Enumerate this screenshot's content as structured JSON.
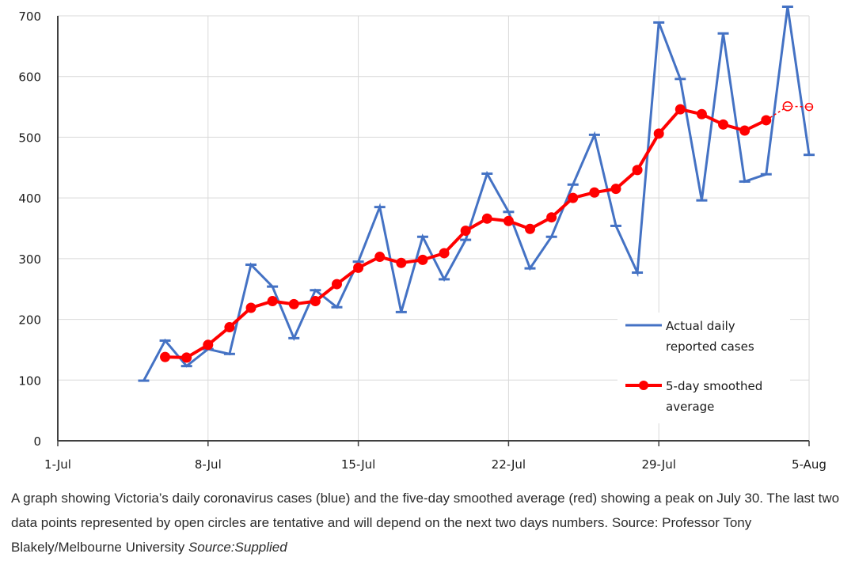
{
  "chart_data": {
    "type": "line",
    "title": "",
    "xlabel": "",
    "ylabel": "",
    "ylim": [
      0,
      700
    ],
    "yticks": [
      0,
      100,
      200,
      300,
      400,
      500,
      600,
      700
    ],
    "xlim": [
      1,
      36
    ],
    "xticks": [
      {
        "day": 1,
        "label": "1-Jul"
      },
      {
        "day": 8,
        "label": "8-Jul"
      },
      {
        "day": 15,
        "label": "15-Jul"
      },
      {
        "day": 22,
        "label": "22-Jul"
      },
      {
        "day": 29,
        "label": "29-Jul"
      },
      {
        "day": 36,
        "label": "5-Aug"
      }
    ],
    "grid": true,
    "legend_position": "bottom-right",
    "series": [
      {
        "name": "Actual daily reported cases",
        "color": "#4472C4",
        "x": [
          5,
          6,
          7,
          8,
          9,
          10,
          11,
          12,
          13,
          14,
          15,
          16,
          17,
          18,
          19,
          20,
          21,
          22,
          23,
          24,
          25,
          26,
          27,
          28,
          29,
          30,
          31,
          32,
          33,
          34,
          35,
          36
        ],
        "values": [
          99,
          165,
          123,
          151,
          143,
          290,
          254,
          169,
          248,
          220,
          295,
          385,
          212,
          336,
          266,
          331,
          440,
          377,
          284,
          336,
          422,
          504,
          354,
          277,
          689,
          596,
          396,
          671,
          427,
          439,
          715,
          471
        ]
      },
      {
        "name": "5-day smoothed average",
        "color": "#FF0000",
        "x": [
          6,
          7,
          8,
          9,
          10,
          11,
          12,
          13,
          14,
          15,
          16,
          17,
          18,
          19,
          20,
          21,
          22,
          23,
          24,
          25,
          26,
          27,
          28,
          29,
          30,
          31,
          32,
          33,
          34
        ],
        "values": [
          138,
          137,
          158,
          187,
          219,
          230,
          225,
          230,
          258,
          285,
          303,
          293,
          298,
          309,
          346,
          366,
          362,
          349,
          368,
          400,
          409,
          415,
          446,
          506,
          546,
          538,
          521,
          511,
          528
        ],
        "tentative": {
          "x": [
            35,
            36
          ],
          "values": [
            551,
            550
          ]
        }
      }
    ]
  },
  "caption": {
    "text": "A graph showing Victoria’s daily coronavirus cases (blue) and the five-day smoothed average (red) showing a peak on July 30. The last two data points represented by open circles are tentative and will depend on the next two days numbers. Source: Professor Tony Blakely/Melbourne University",
    "source": "Source:Supplied"
  }
}
